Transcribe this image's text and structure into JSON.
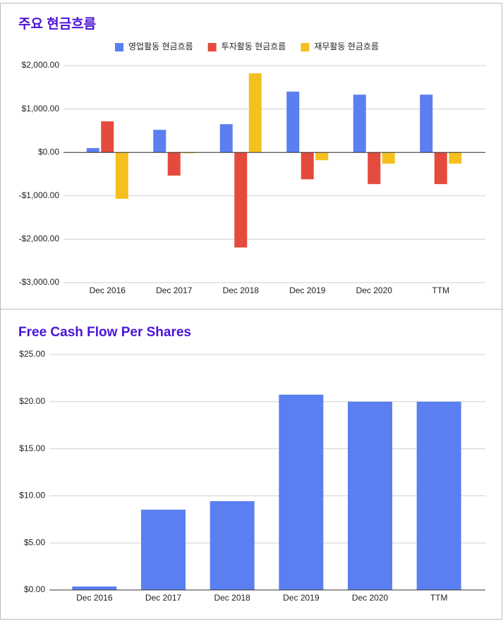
{
  "chart_data": [
    {
      "type": "bar",
      "title": "주요 현금흐름",
      "categories": [
        "Dec 2016",
        "Dec 2017",
        "Dec 2018",
        "Dec 2019",
        "Dec 2020",
        "TTM"
      ],
      "series": [
        {
          "name": "영업활동 현금흐름",
          "color": "#5b7ff0",
          "values": [
            100,
            520,
            650,
            1400,
            1330,
            1330
          ]
        },
        {
          "name": "투자활동 현금흐름",
          "color": "#e54b3c",
          "values": [
            715,
            -535,
            -2190,
            -620,
            -730,
            -730
          ]
        },
        {
          "name": "재무활동 현금흐름",
          "color": "#f4c020",
          "values": [
            -1070,
            -20,
            1820,
            -180,
            -260,
            -260
          ]
        }
      ],
      "ylim": [
        -3000,
        2000
      ],
      "yticks": [
        {
          "value": 2000,
          "label": "$2,000.00"
        },
        {
          "value": 1000,
          "label": "$1,000.00"
        },
        {
          "value": 0,
          "label": "$0.00"
        },
        {
          "value": -1000,
          "label": "-$1,000.00"
        },
        {
          "value": -2000,
          "label": "-$2,000.00"
        },
        {
          "value": -3000,
          "label": "-$3,000.00"
        }
      ],
      "grid": true,
      "legend": "top"
    },
    {
      "type": "bar",
      "title": "Free Cash Flow Per Shares",
      "categories": [
        "Dec 2016",
        "Dec 2017",
        "Dec 2018",
        "Dec 2019",
        "Dec 2020",
        "TTM"
      ],
      "series": [
        {
          "color": "#5b7ff0",
          "values": [
            0.37,
            8.53,
            9.43,
            20.74,
            19.99,
            19.99
          ]
        }
      ],
      "ylim": [
        0,
        25
      ],
      "yticks": [
        {
          "value": 25,
          "label": "$25.00"
        },
        {
          "value": 20,
          "label": "$20.00"
        },
        {
          "value": 15,
          "label": "$15.00"
        },
        {
          "value": 10,
          "label": "$10.00"
        },
        {
          "value": 5,
          "label": "$5.00"
        },
        {
          "value": 0,
          "label": "$0.00"
        }
      ],
      "grid": true
    }
  ]
}
